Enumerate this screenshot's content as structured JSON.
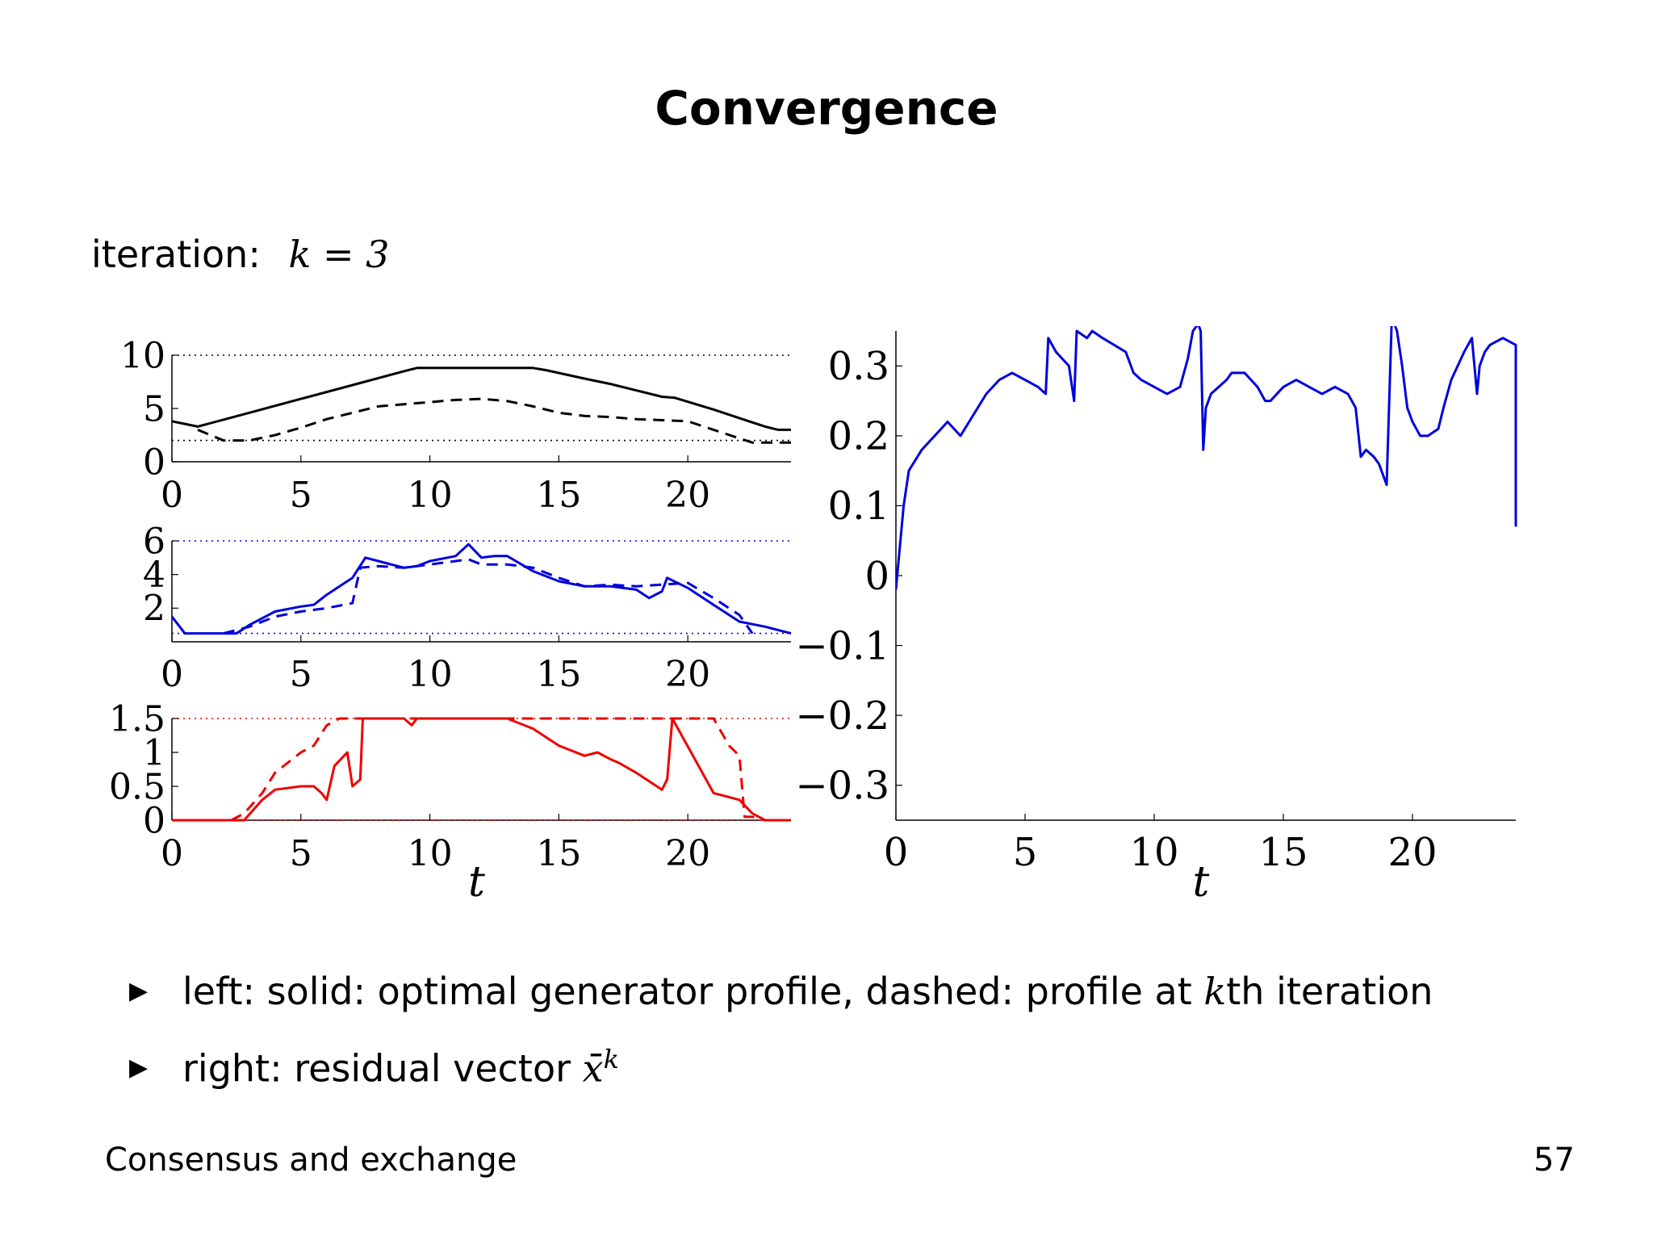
{
  "slide": {
    "title": "Convergence",
    "iteration_label": "iteration:",
    "iteration_math": "k = 3",
    "footer_left": "Consensus and exchange",
    "page_number": "57"
  },
  "bullets": [
    {
      "prefix": "left: solid: optimal generator profile, dashed: profile at ",
      "math": "k",
      "suffix": "th iteration"
    },
    {
      "prefix": "right: residual vector ",
      "math": "x̄",
      "sup": "k",
      "suffix": ""
    }
  ],
  "colors": {
    "top": "#000000",
    "mid": "#0000dd",
    "bottom": "#ee0000",
    "right": "#0000dd"
  },
  "chart_data": [
    {
      "type": "line",
      "x_ticks": [
        0,
        5,
        10,
        15,
        20
      ],
      "xlim": [
        0,
        24
      ],
      "ylim": [
        0,
        10
      ],
      "y_ticks": [
        0,
        5,
        10
      ],
      "y_tick_labels": [
        "0",
        "5",
        "10"
      ],
      "limit_lines": [
        2,
        10
      ],
      "series": [
        {
          "style": "solid",
          "x": [
            0,
            1,
            3,
            5,
            7,
            9,
            9.5,
            10,
            12,
            14,
            14.5,
            16,
            17,
            18,
            19,
            19.5,
            21,
            22,
            23,
            23.5,
            24
          ],
          "y": [
            3.8,
            3.3,
            4.6,
            5.9,
            7.2,
            8.5,
            8.8,
            8.8,
            8.8,
            8.8,
            8.6,
            7.8,
            7.3,
            6.7,
            6.1,
            6.0,
            4.9,
            4.1,
            3.3,
            3.0,
            3.0
          ]
        },
        {
          "style": "dashed",
          "x": [
            1,
            2,
            3,
            4,
            5,
            6,
            7,
            8,
            9,
            10,
            11,
            12,
            13,
            14,
            15,
            16,
            17,
            18,
            19,
            20,
            21,
            22,
            22.5,
            23,
            24
          ],
          "y": [
            3.0,
            2.0,
            2.0,
            2.5,
            3.2,
            4.0,
            4.6,
            5.2,
            5.4,
            5.6,
            5.8,
            5.9,
            5.7,
            5.2,
            4.6,
            4.3,
            4.2,
            4.0,
            3.9,
            3.8,
            3.0,
            2.2,
            1.8,
            1.8,
            1.8
          ]
        }
      ]
    },
    {
      "type": "line",
      "x_ticks": [
        0,
        5,
        10,
        15,
        20
      ],
      "xlim": [
        0,
        24
      ],
      "ylim": [
        0,
        6
      ],
      "y_ticks": [
        2,
        4,
        6
      ],
      "y_tick_labels": [
        "2",
        "4",
        "6"
      ],
      "limit_lines": [
        0.5,
        6
      ],
      "series": [
        {
          "style": "solid",
          "x": [
            0,
            0.5,
            1,
            2,
            2.5,
            3,
            4,
            5,
            5.5,
            6,
            6.5,
            7,
            7.5,
            8,
            9,
            9.5,
            10,
            11,
            11.5,
            12,
            12.5,
            13,
            14,
            15,
            16,
            17,
            18,
            18.5,
            19,
            19.2,
            20,
            21,
            22,
            23,
            24
          ],
          "y": [
            1.5,
            0.5,
            0.5,
            0.5,
            0.5,
            1.0,
            1.8,
            2.1,
            2.2,
            2.8,
            3.3,
            3.8,
            5.0,
            4.8,
            4.4,
            4.5,
            4.8,
            5.1,
            5.8,
            5.0,
            5.1,
            5.1,
            4.2,
            3.6,
            3.3,
            3.3,
            3.1,
            2.6,
            3.0,
            3.8,
            3.2,
            2.2,
            1.2,
            0.9,
            0.5
          ]
        },
        {
          "style": "dashed",
          "x": [
            2,
            2.5,
            3,
            4,
            5,
            5.5,
            6,
            7,
            7.3,
            8,
            9,
            10,
            11,
            11.5,
            12,
            13,
            14,
            15,
            16,
            17,
            18,
            19,
            20,
            21,
            22,
            22.5
          ],
          "y": [
            0.5,
            0.7,
            0.9,
            1.5,
            1.8,
            1.9,
            2.0,
            2.3,
            4.4,
            4.5,
            4.4,
            4.6,
            4.8,
            4.9,
            4.6,
            4.6,
            4.4,
            3.8,
            3.3,
            3.4,
            3.3,
            3.4,
            3.5,
            2.6,
            1.6,
            0.5
          ]
        }
      ]
    },
    {
      "type": "line",
      "x_ticks": [
        0,
        5,
        10,
        15,
        20
      ],
      "xlim": [
        0,
        24
      ],
      "ylim": [
        0,
        1.5
      ],
      "y_ticks": [
        0,
        0.5,
        1,
        1.5
      ],
      "y_tick_labels": [
        "0",
        "0.5",
        "1",
        "1.5"
      ],
      "limit_lines": [
        0,
        1.5
      ],
      "xlabel": "t",
      "series": [
        {
          "style": "solid",
          "x": [
            0,
            2.8,
            3.5,
            4,
            5,
            5.5,
            5.8,
            6,
            6.3,
            6.8,
            7,
            7.3,
            7.4,
            9,
            9.3,
            9.5,
            10,
            13,
            14,
            15,
            16,
            16.5,
            17,
            17.3,
            18,
            19,
            19.2,
            19.4,
            21,
            21.5,
            22,
            22.5,
            23,
            24
          ],
          "y": [
            0,
            0,
            0.3,
            0.45,
            0.5,
            0.5,
            0.4,
            0.3,
            0.8,
            1.0,
            0.5,
            0.6,
            1.5,
            1.5,
            1.4,
            1.5,
            1.5,
            1.5,
            1.35,
            1.1,
            0.95,
            1.0,
            0.9,
            0.85,
            0.7,
            0.45,
            0.6,
            1.5,
            0.4,
            0.35,
            0.3,
            0.1,
            0.0,
            0.0
          ]
        },
        {
          "style": "dashed",
          "x": [
            2.3,
            2.8,
            3.5,
            4,
            5,
            5.5,
            6,
            6.5,
            7.3,
            12,
            18,
            19.5,
            20,
            21,
            21.6,
            22,
            22.2,
            22.5,
            23,
            24
          ],
          "y": [
            0,
            0.1,
            0.4,
            0.7,
            1.0,
            1.1,
            1.4,
            1.5,
            1.5,
            1.5,
            1.5,
            1.5,
            1.5,
            1.5,
            1.1,
            0.95,
            0.05,
            0.05,
            0.0,
            0.0
          ]
        }
      ]
    },
    {
      "type": "line",
      "x_ticks": [
        0,
        5,
        10,
        15,
        20
      ],
      "xlim": [
        0,
        24
      ],
      "ylim": [
        -0.35,
        0.35
      ],
      "y_ticks": [
        0.3,
        0.2,
        0.1,
        0,
        -0.1,
        -0.2,
        -0.3
      ],
      "y_tick_labels": [
        "0.3",
        "0.2",
        "0.1",
        "0",
        "−0.1",
        "−0.2",
        "−0.3"
      ],
      "xlabel": "t",
      "series": [
        {
          "style": "solid",
          "x": [
            0,
            0.3,
            0.5,
            1,
            1.5,
            2,
            2.5,
            3,
            3.5,
            4,
            4.5,
            5,
            5.5,
            5.8,
            5.9,
            6.2,
            6.7,
            6.9,
            7.0,
            7.4,
            7.6,
            8,
            8.9,
            9.2,
            9.5,
            10,
            10.5,
            11,
            11.3,
            11.5,
            11.7,
            11.8,
            11.9,
            12,
            12.2,
            12.5,
            12.8,
            13,
            13.5,
            14,
            14.3,
            14.5,
            15,
            15.5,
            16,
            16.5,
            17,
            17.5,
            17.8,
            18,
            18.2,
            18.5,
            18.7,
            19,
            19.2,
            19.4,
            19.6,
            19.8,
            20,
            20.3,
            20.6,
            21,
            21.2,
            21.5,
            22,
            22.3,
            22.4,
            22.5,
            22.6,
            22.8,
            23,
            23.5,
            24,
            24
          ],
          "y": [
            -0.02,
            0.1,
            0.15,
            0.18,
            0.2,
            0.22,
            0.2,
            0.23,
            0.26,
            0.28,
            0.29,
            0.28,
            0.27,
            0.26,
            0.34,
            0.32,
            0.3,
            0.25,
            0.35,
            0.34,
            0.35,
            0.34,
            0.32,
            0.29,
            0.28,
            0.27,
            0.26,
            0.27,
            0.31,
            0.35,
            0.36,
            0.35,
            0.18,
            0.24,
            0.26,
            0.27,
            0.28,
            0.29,
            0.29,
            0.27,
            0.25,
            0.25,
            0.27,
            0.28,
            0.27,
            0.26,
            0.27,
            0.26,
            0.24,
            0.17,
            0.18,
            0.17,
            0.16,
            0.13,
            0.37,
            0.35,
            0.3,
            0.24,
            0.22,
            0.2,
            0.2,
            0.21,
            0.24,
            0.28,
            0.32,
            0.34,
            0.3,
            0.26,
            0.3,
            0.32,
            0.33,
            0.34,
            0.33,
            0.07
          ]
        }
      ]
    }
  ]
}
